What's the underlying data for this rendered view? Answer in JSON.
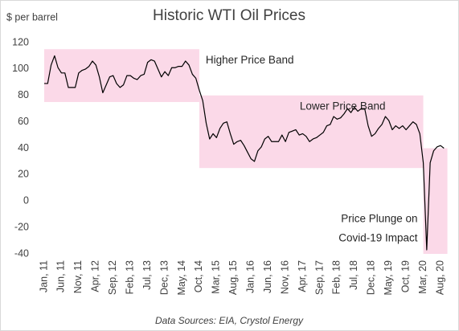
{
  "chart_data": {
    "type": "line",
    "title": "Historic WTI Oil Prices",
    "y_label": "$ per barrel",
    "source": "Data Sources: EIA, Crystol Energy",
    "color": "#000000",
    "categories": [
      "Jan, 11",
      null,
      null,
      null,
      null,
      "Jun, 11",
      null,
      null,
      null,
      null,
      "Nov, 11",
      null,
      null,
      null,
      null,
      "Apr, 12",
      null,
      null,
      null,
      null,
      "Sep, 12",
      null,
      null,
      null,
      null,
      "Feb, 13",
      null,
      null,
      null,
      null,
      "Jul, 13",
      null,
      null,
      null,
      null,
      "Dec, 13",
      null,
      null,
      null,
      null,
      "May, 14",
      null,
      null,
      null,
      null,
      "Oct, 14",
      null,
      null,
      null,
      null,
      "Mar, 15",
      null,
      null,
      null,
      null,
      "Aug, 15",
      null,
      null,
      null,
      null,
      "Jan, 16",
      null,
      null,
      null,
      null,
      "Jun, 16",
      null,
      null,
      null,
      null,
      "Nov, 16",
      null,
      null,
      null,
      null,
      "Apr, 17",
      null,
      null,
      null,
      null,
      "Sep, 17",
      null,
      null,
      null,
      null,
      "Feb, 18",
      null,
      null,
      null,
      null,
      "Jul, 18",
      null,
      null,
      null,
      null,
      "Dec, 18",
      null,
      null,
      null,
      null,
      "May, 19",
      null,
      null,
      null,
      null,
      "Oct, 19",
      null,
      null,
      null,
      null,
      "Mar, 20",
      null,
      null,
      null,
      null,
      "Aug, 20",
      null
    ],
    "values": [
      89,
      89,
      103,
      110,
      101,
      97,
      97,
      86,
      86,
      86,
      97,
      99,
      100,
      102,
      106,
      103,
      94,
      82,
      88,
      94,
      95,
      89,
      86,
      88,
      95,
      95,
      93,
      92,
      95,
      96,
      105,
      107,
      106,
      100,
      94,
      98,
      95,
      101,
      101,
      102,
      102,
      106,
      103,
      96,
      93,
      84,
      76,
      59,
      47,
      51,
      48,
      55,
      59,
      60,
      51,
      43,
      45,
      46,
      42,
      37,
      32,
      30,
      38,
      41,
      47,
      49,
      45,
      45,
      45,
      50,
      45,
      52,
      53,
      54,
      50,
      51,
      49,
      45,
      47,
      48,
      50,
      52,
      57,
      58,
      64,
      62,
      63,
      66,
      70,
      67,
      71,
      68,
      70,
      70,
      57,
      49,
      51,
      55,
      58,
      64,
      61,
      54,
      57,
      55,
      57,
      54,
      57,
      60,
      58,
      51,
      29,
      -37,
      29,
      38,
      41,
      42,
      40
    ],
    "ylim": [
      -40,
      120
    ],
    "yticks": [
      -40,
      -20,
      0,
      20,
      40,
      60,
      80,
      100,
      120
    ],
    "grid": false,
    "band_color": "#fbd9e8",
    "bands": [
      {
        "label": [
          "Higher Price Band"
        ],
        "x": [
          0,
          45
        ],
        "y": [
          75,
          115
        ]
      },
      {
        "label": [
          "Lower Price Band"
        ],
        "x": [
          45,
          110
        ],
        "y": [
          25,
          80
        ]
      },
      {
        "label": [
          "Price Plunge on",
          "Covid-19 Impact"
        ],
        "x": [
          110,
          117
        ],
        "y": [
          -40,
          40
        ]
      }
    ]
  }
}
